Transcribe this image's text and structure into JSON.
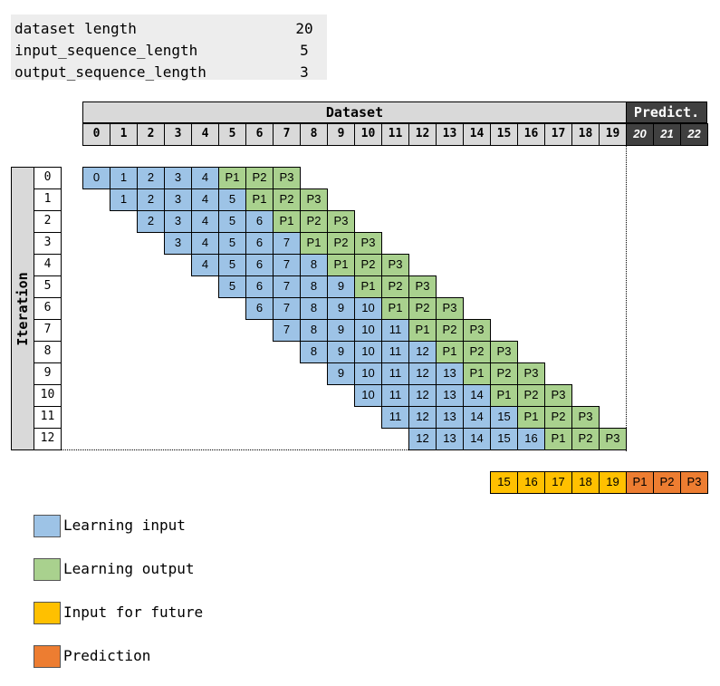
{
  "params": [
    {
      "name": "dataset length",
      "value": "20"
    },
    {
      "name": "input_sequence_length",
      "value": "5"
    },
    {
      "name": "output_sequence_length",
      "value": "3"
    }
  ],
  "header": {
    "dataset_title": "Dataset",
    "predict_title": "Predict."
  },
  "dataset_indices": [
    "0",
    "1",
    "2",
    "3",
    "4",
    "5",
    "6",
    "7",
    "8",
    "9",
    "10",
    "11",
    "12",
    "13",
    "14",
    "15",
    "16",
    "17",
    "18",
    "19"
  ],
  "predict_indices": [
    "20",
    "21",
    "22"
  ],
  "iteration_label": "Iteration",
  "iterations": [
    "0",
    "1",
    "2",
    "3",
    "4",
    "5",
    "6",
    "7",
    "8",
    "9",
    "10",
    "11",
    "12"
  ],
  "output_labels": [
    "P1",
    "P2",
    "P3"
  ],
  "future_inputs": [
    "15",
    "16",
    "17",
    "18",
    "19"
  ],
  "future_predictions": [
    "P1",
    "P2",
    "P3"
  ],
  "legend": [
    {
      "label": "Learning input",
      "color": "#9dc3e6"
    },
    {
      "label": "Learning output",
      "color": "#a9d18e"
    },
    {
      "label": "Input for future",
      "color": "#ffc000"
    },
    {
      "label": "Prediction",
      "color": "#ed7d31"
    }
  ],
  "colors": {
    "input": "#9dc3e6",
    "output": "#a9d18e",
    "future": "#ffc000",
    "prediction": "#ed7d31",
    "header": "#d9d9d9",
    "predict_header": "#404040"
  }
}
